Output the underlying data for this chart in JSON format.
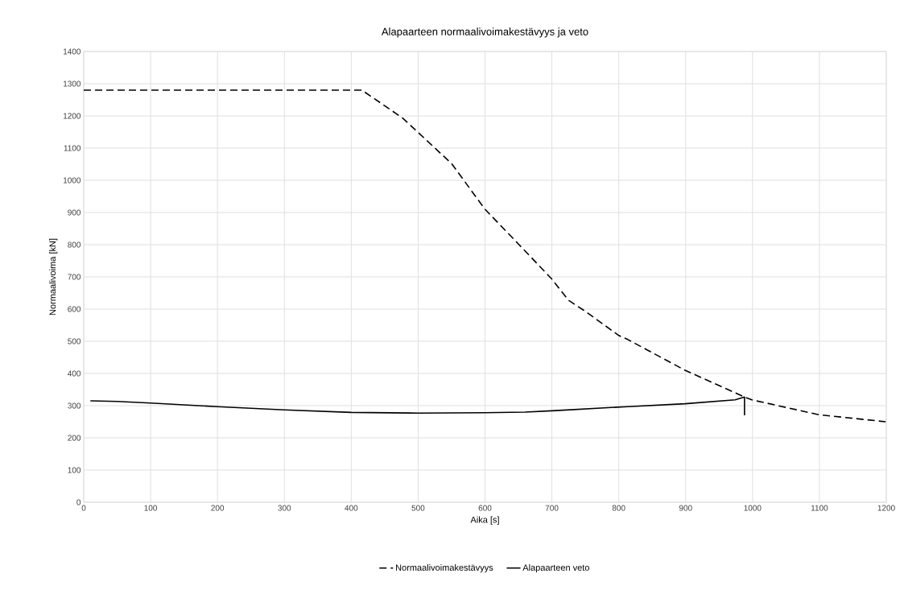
{
  "chart_data": {
    "type": "line",
    "title": "Alapaarteen normaalivoimakestävyys ja veto",
    "xlabel": "Aika [s]",
    "ylabel": "Normaalivoima [kN]",
    "xlim": [
      0,
      1200
    ],
    "xticks": [
      0,
      100,
      200,
      300,
      400,
      500,
      600,
      700,
      800,
      900,
      1000,
      1100,
      1200
    ],
    "ylim": [
      0,
      1400
    ],
    "yticks": [
      0,
      100,
      200,
      300,
      400,
      500,
      600,
      700,
      800,
      900,
      1000,
      1100,
      1200,
      1300,
      1400
    ],
    "grid": true,
    "legend": "bottom",
    "marker": "none",
    "series": [
      {
        "name": "Normaalivoimakestävyys",
        "color": "#000000",
        "line_style": "dashed",
        "x": [
          0,
          100,
          200,
          300,
          416,
          477,
          550,
          600,
          650,
          700,
          725,
          750,
          800,
          813,
          899,
          988,
          999,
          1099,
          1199
        ],
        "values": [
          1280,
          1280,
          1280,
          1280,
          1280,
          1193,
          1052,
          910,
          802,
          693,
          627,
          593,
          518,
          506,
          410,
          327,
          318,
          272,
          250
        ]
      },
      {
        "name": "Alapaarteen veto",
        "color": "#000000",
        "line_style": "solid",
        "x": [
          10,
          50,
          100,
          200,
          300,
          400,
          500,
          600,
          660,
          700,
          813,
          899,
          974,
          988,
          988
        ],
        "values": [
          315,
          313,
          308,
          297,
          287,
          279,
          277,
          278,
          280,
          284,
          297,
          306,
          318,
          327,
          270
        ]
      }
    ]
  }
}
